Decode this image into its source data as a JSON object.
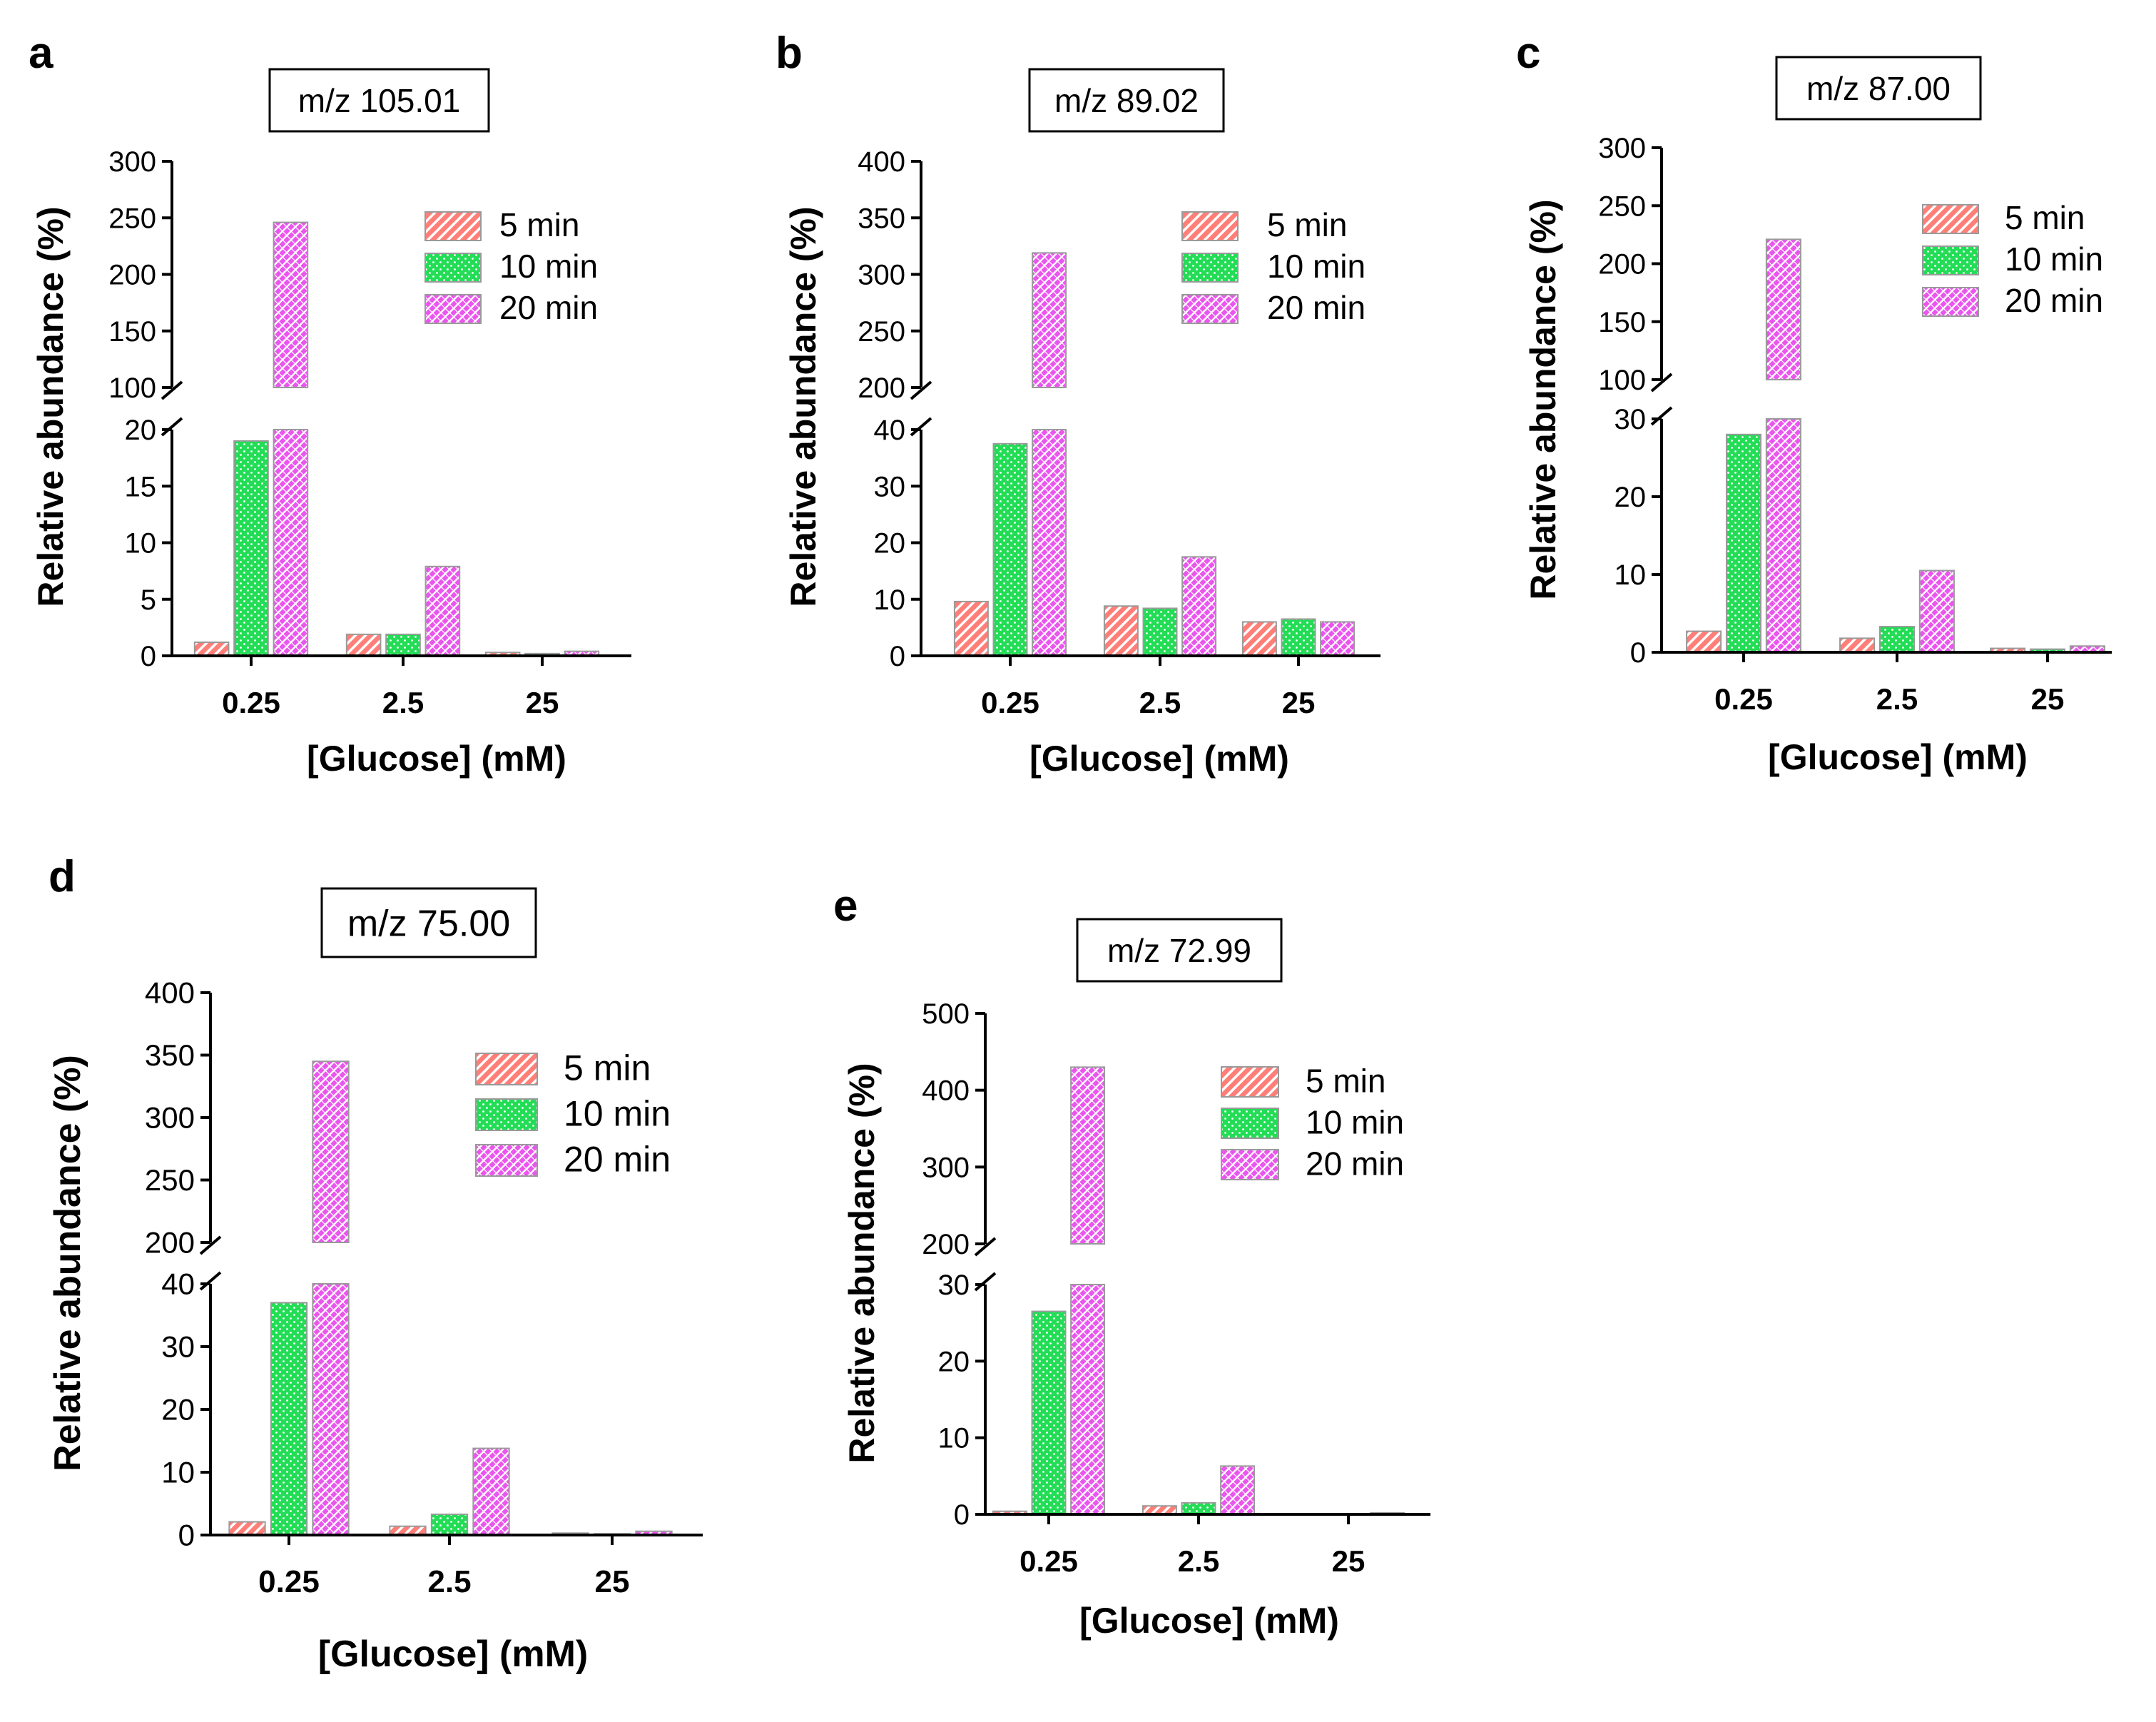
{
  "legend_labels": [
    "5 min",
    "10 min",
    "20 min"
  ],
  "colors": {
    "5 min": "#ff7f78",
    "10 min": "#22dd55",
    "20 min": "#ea55ee",
    "stroke": "#9a9a9a",
    "axis": "#000000"
  },
  "chart_data": [
    {
      "panel": "a",
      "type": "bar",
      "title": "m/z 105.01",
      "xlabel": "[Glucose] (mM)",
      "ylabel": "Relative abundance (%)",
      "categories": [
        "0.25",
        "2.5",
        "25"
      ],
      "series": [
        {
          "name": "5 min",
          "values": [
            1.2,
            1.9,
            0.3
          ]
        },
        {
          "name": "10 min",
          "values": [
            19,
            1.9,
            0.2
          ]
        },
        {
          "name": "20 min",
          "values": [
            246,
            7.9,
            0.4
          ]
        }
      ],
      "y_break": true,
      "lower_segment": {
        "ylim": [
          0,
          20
        ],
        "ticks": [
          "0",
          "5",
          "10",
          "15",
          "20"
        ]
      },
      "upper_segment": {
        "ylim": [
          100,
          300
        ],
        "ticks": [
          "100",
          "150",
          "200",
          "250",
          "300"
        ]
      },
      "legend_position": "top-right"
    },
    {
      "panel": "b",
      "type": "bar",
      "title": "m/z 89.02",
      "xlabel": "[Glucose] (mM)",
      "ylabel": "Relative abundance (%)",
      "categories": [
        "0.25",
        "2.5",
        "25"
      ],
      "series": [
        {
          "name": "5 min",
          "values": [
            9.6,
            8.8,
            6.0
          ]
        },
        {
          "name": "10 min",
          "values": [
            37.5,
            8.4,
            6.5
          ]
        },
        {
          "name": "20 min",
          "values": [
            319,
            17.5,
            6.0
          ]
        }
      ],
      "y_break": true,
      "lower_segment": {
        "ylim": [
          0,
          40
        ],
        "ticks": [
          "0",
          "10",
          "20",
          "30",
          "40"
        ]
      },
      "upper_segment": {
        "ylim": [
          200,
          400
        ],
        "ticks": [
          "200",
          "250",
          "300",
          "350",
          "400"
        ]
      },
      "legend_position": "top-right"
    },
    {
      "panel": "c",
      "type": "bar",
      "title": "m/z 87.00",
      "xlabel": "[Glucose] (mM)",
      "ylabel": "Relative abundance (%)",
      "categories": [
        "0.25",
        "2.5",
        "25"
      ],
      "series": [
        {
          "name": "5 min",
          "values": [
            2.7,
            1.8,
            0.5
          ]
        },
        {
          "name": "10 min",
          "values": [
            28,
            3.3,
            0.4
          ]
        },
        {
          "name": "20 min",
          "values": [
            221,
            10.5,
            0.8
          ]
        }
      ],
      "y_break": true,
      "lower_segment": {
        "ylim": [
          0,
          30
        ],
        "ticks": [
          "0",
          "10",
          "20",
          "30"
        ]
      },
      "upper_segment": {
        "ylim": [
          100,
          300
        ],
        "ticks": [
          "100",
          "150",
          "200",
          "250",
          "300"
        ]
      },
      "legend_position": "top-right"
    },
    {
      "panel": "d",
      "type": "bar",
      "title": "m/z 75.00",
      "xlabel": "[Glucose] (mM)",
      "ylabel": "Relative abundance (%)",
      "categories": [
        "0.25",
        "2.5",
        "25"
      ],
      "series": [
        {
          "name": "5 min",
          "values": [
            2.1,
            1.4,
            0.3
          ]
        },
        {
          "name": "10 min",
          "values": [
            37,
            3.3,
            0.2
          ]
        },
        {
          "name": "20 min",
          "values": [
            345,
            13.8,
            0.6
          ]
        }
      ],
      "y_break": true,
      "lower_segment": {
        "ylim": [
          0,
          40
        ],
        "ticks": [
          "0",
          "10",
          "20",
          "30",
          "40"
        ]
      },
      "upper_segment": {
        "ylim": [
          200,
          400
        ],
        "ticks": [
          "200",
          "250",
          "300",
          "350",
          "400"
        ]
      },
      "legend_position": "top-right"
    },
    {
      "panel": "e",
      "type": "bar",
      "title": "m/z 72.99",
      "xlabel": "[Glucose] (mM)",
      "ylabel": "Relative abundance (%)",
      "categories": [
        "0.25",
        "2.5",
        "25"
      ],
      "series": [
        {
          "name": "5 min",
          "values": [
            0.4,
            1.1,
            0.1
          ]
        },
        {
          "name": "10 min",
          "values": [
            26.5,
            1.5,
            0.1
          ]
        },
        {
          "name": "20 min",
          "values": [
            430,
            6.3,
            0.2
          ]
        }
      ],
      "y_break": true,
      "lower_segment": {
        "ylim": [
          0,
          30
        ],
        "ticks": [
          "0",
          "10",
          "20",
          "30"
        ]
      },
      "upper_segment": {
        "ylim": [
          200,
          500
        ],
        "ticks": [
          "200",
          "300",
          "400",
          "500"
        ]
      },
      "legend_position": "top-right"
    }
  ]
}
